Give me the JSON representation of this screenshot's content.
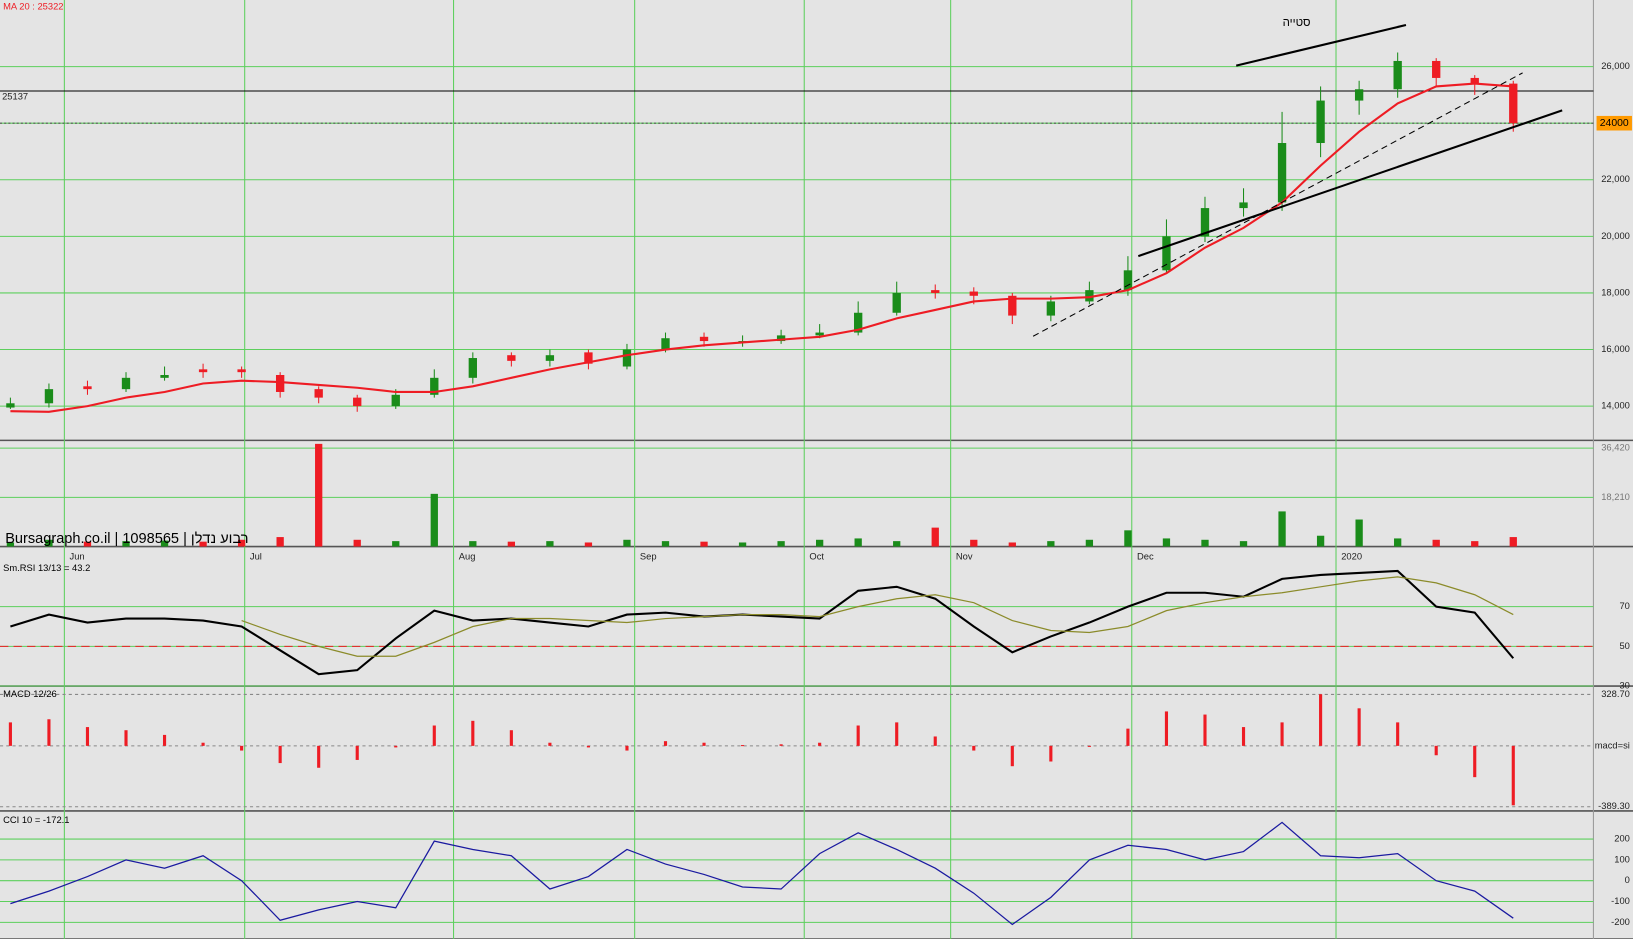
{
  "chart_data": [
    {
      "type": "candlestick",
      "title": "MA 20 : 25322",
      "source": "Bursagraph.co.il | 1098565 | רבוע נדלן",
      "annotation": "סטייה",
      "xlim": [
        -0.27,
        41.08
      ],
      "xticks": [
        {
          "value": 1.4,
          "label": "Jun"
        },
        {
          "value": 6.08,
          "label": "Jul"
        },
        {
          "value": 11.5,
          "label": "Aug"
        },
        {
          "value": 16.2,
          "label": "Sep"
        },
        {
          "value": 20.6,
          "label": "Oct"
        },
        {
          "value": 24.4,
          "label": "Nov"
        },
        {
          "value": 29.1,
          "label": "Dec"
        },
        {
          "value": 34.4,
          "label": "2020"
        }
      ],
      "ylim": [
        12790,
        28355
      ],
      "yticks": [
        {
          "value": 14000,
          "label": "14,000"
        },
        {
          "value": 16000,
          "label": "16,000"
        },
        {
          "value": 18000,
          "label": "18,000"
        },
        {
          "value": 20000,
          "label": "20,000"
        },
        {
          "value": 22000,
          "label": "22,000"
        },
        {
          "value": 24000,
          "label": "24,000"
        },
        {
          "value": 26000,
          "label": "26,000"
        }
      ],
      "grid": true,
      "up_color": "#1a8c1a",
      "down_color": "#ee1c24",
      "open": [
        13950,
        14100,
        14700,
        14600,
        15000,
        15300,
        15300,
        15100,
        14600,
        14300,
        14000,
        14400,
        15000,
        15800,
        15600,
        15900,
        15400,
        16000,
        16450,
        16300,
        16300,
        16500,
        16600,
        17300,
        18100,
        18050,
        17900,
        17200,
        17700,
        18100,
        18800,
        20000,
        21000,
        21200,
        23300,
        24800,
        25200,
        26200,
        25600,
        25400
      ],
      "high": [
        14300,
        14800,
        14900,
        15200,
        15400,
        15500,
        15400,
        15200,
        14700,
        14400,
        14600,
        15300,
        15900,
        15900,
        16000,
        16000,
        16200,
        16600,
        16600,
        16500,
        16700,
        16900,
        17700,
        18400,
        18300,
        18200,
        18000,
        17900,
        18400,
        19300,
        20600,
        21400,
        21700,
        24400,
        25300,
        25500,
        26500,
        26300,
        25700,
        25500
      ],
      "low": [
        13900,
        13950,
        14400,
        14500,
        14900,
        15000,
        15000,
        14300,
        14100,
        13800,
        13900,
        14300,
        14800,
        15400,
        15400,
        15300,
        15300,
        15900,
        16100,
        16100,
        16200,
        16400,
        16500,
        17200,
        17800,
        17600,
        16900,
        17000,
        17600,
        17900,
        18700,
        19800,
        20700,
        20900,
        22800,
        24300,
        24900,
        25300,
        25000,
        23700
      ],
      "close": [
        14100,
        14600,
        14600,
        15000,
        15100,
        15200,
        15200,
        14500,
        14300,
        14000,
        14400,
        15000,
        15700,
        15600,
        15800,
        15500,
        16000,
        16400,
        16300,
        16300,
        16500,
        16600,
        17300,
        18000,
        18000,
        17900,
        17200,
        17700,
        18100,
        18800,
        20000,
        21000,
        21200,
        23300,
        24800,
        25200,
        26200,
        25600,
        25400,
        24000
      ],
      "ma_color": "#ee1c24",
      "ma": [
        13820,
        13800,
        14000,
        14300,
        14500,
        14800,
        14900,
        14850,
        14750,
        14650,
        14500,
        14500,
        14700,
        15000,
        15300,
        15550,
        15800,
        16000,
        16150,
        16250,
        16350,
        16450,
        16700,
        17100,
        17400,
        17700,
        17800,
        17800,
        17850,
        18100,
        18700,
        19600,
        20300,
        21200,
        22500,
        23700,
        24700,
        25300,
        25400,
        25300
      ],
      "resistance": 25137,
      "last_price": 24000
    },
    {
      "type": "bar",
      "ylim": [
        0,
        39300
      ],
      "yticks": [
        {
          "value": 18210,
          "label": "18,210"
        },
        {
          "value": 36420,
          "label": "36,420"
        }
      ],
      "values": [
        1500,
        2500,
        1800,
        2000,
        2200,
        1800,
        2500,
        3500,
        38000,
        2500,
        2000,
        19500,
        2000,
        1800,
        2000,
        1500,
        2500,
        2000,
        1800,
        1500,
        2000,
        2500,
        3000,
        2000,
        7000,
        2500,
        1500,
        2000,
        2500,
        6000,
        3000,
        2500,
        2000,
        13000,
        4000,
        10000,
        3000,
        2500,
        2000,
        3500
      ]
    },
    {
      "type": "line",
      "title": "Sm.RSI 13/13 = 43.2",
      "ylim": [
        30,
        94
      ],
      "yticks": [
        30,
        50,
        70
      ],
      "dashed_level": 50,
      "dashed_color": "#ee1c24",
      "series": [
        {
          "color": "#000000",
          "values": [
            60,
            66,
            62,
            64,
            64,
            63,
            60,
            48,
            36,
            38,
            54,
            68,
            63,
            64,
            62,
            60,
            66,
            67,
            65,
            66,
            65,
            64,
            78,
            80,
            74,
            60,
            47,
            55,
            62,
            70,
            77,
            77,
            75,
            84,
            86,
            87,
            88,
            70,
            67,
            44
          ]
        },
        {
          "color": "#8b8b2a",
          "values": [
            null,
            null,
            null,
            null,
            null,
            null,
            63,
            56,
            50,
            45,
            45,
            52,
            60,
            64,
            64,
            63,
            62,
            64,
            65,
            66,
            66,
            65,
            70,
            74,
            76,
            72,
            63,
            58,
            57,
            60,
            68,
            72,
            75,
            77,
            80,
            83,
            85,
            82,
            76,
            66
          ]
        }
      ]
    },
    {
      "type": "bar",
      "title": "MACD 12/26",
      "ylim": [
        -416,
        369
      ],
      "color": "#ee1c24",
      "yticks": [
        {
          "value": -389.3,
          "label": "-389.30"
        },
        {
          "value": 0,
          "label": "macd=si"
        },
        {
          "value": 328.7,
          "label": "328.70"
        }
      ],
      "values": [
        150,
        170,
        120,
        100,
        70,
        20,
        -30,
        -110,
        -140,
        -90,
        -10,
        130,
        160,
        100,
        20,
        -10,
        -30,
        30,
        20,
        5,
        10,
        20,
        130,
        150,
        60,
        -30,
        -130,
        -100,
        0,
        110,
        220,
        200,
        120,
        150,
        330,
        240,
        150,
        -60,
        -200,
        -380
      ]
    },
    {
      "type": "line",
      "title": "CCI 10 = -172.1",
      "ylim": [
        -280,
        325
      ],
      "yticks": [
        -200,
        -100,
        0,
        100,
        200
      ],
      "series": [
        {
          "color": "#1a1aa0",
          "values": [
            -110,
            -50,
            20,
            100,
            60,
            120,
            0,
            -190,
            -140,
            -100,
            -130,
            190,
            150,
            120,
            -40,
            20,
            150,
            80,
            30,
            -30,
            -40,
            130,
            230,
            150,
            60,
            -60,
            -210,
            -80,
            100,
            170,
            150,
            100,
            140,
            280,
            120,
            110,
            130,
            0,
            -50,
            -180
          ]
        }
      ]
    }
  ]
}
